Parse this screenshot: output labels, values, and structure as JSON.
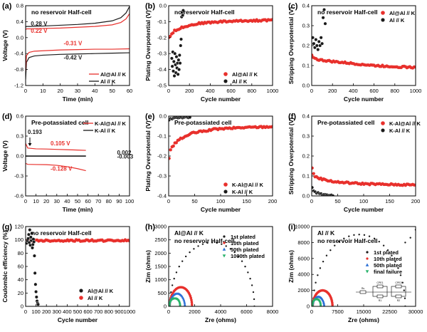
{
  "figure": {
    "panels": [
      "(a)",
      "(b)",
      "(c)",
      "(d)",
      "(e)",
      "(f)",
      "(g)",
      "(h)",
      "(i)"
    ]
  },
  "colors": {
    "red": "#e8302c",
    "black": "#1a1a1a",
    "blue": "#2a6fd6",
    "green": "#29b36b",
    "pink": "#f07a7a",
    "gray": "#b0b0b0"
  },
  "chart_data": [
    {
      "panel": "(a)",
      "type": "line",
      "title": "no reservoir Half-cell",
      "xlabel": "Time (min)",
      "ylabel": "Voltage (V)",
      "xlim": [
        0,
        60
      ],
      "ylim": [
        -1.2,
        0.8
      ],
      "xticks": [
        "0",
        "10",
        "20",
        "30",
        "40",
        "50",
        "60"
      ],
      "yticks": [
        "-1.2",
        "-0.8",
        "-0.4",
        "0.0",
        "0.4",
        "0.8"
      ],
      "annotations": [
        {
          "text": "0.28 V",
          "color": "black",
          "at": [
            3,
            0.3
          ]
        },
        {
          "text": "0.22 V",
          "color": "red",
          "at": [
            3,
            0.12
          ]
        },
        {
          "text": "-0.31 V",
          "color": "red",
          "at": [
            22,
            -0.19
          ]
        },
        {
          "text": "-0.42 V",
          "color": "black",
          "at": [
            22,
            -0.55
          ]
        }
      ],
      "legend": [
        "Al@Al // K",
        "Al // K"
      ],
      "series": [
        {
          "name": "Al // K (plating)",
          "color": "black",
          "x": [
            0,
            0.5,
            2,
            5,
            10,
            20,
            30,
            40,
            50,
            60
          ],
          "y": [
            -1.05,
            -0.62,
            -0.5,
            -0.46,
            -0.44,
            -0.42,
            -0.41,
            -0.4,
            -0.39,
            -0.38
          ]
        },
        {
          "name": "Al@Al // K (plating)",
          "color": "red",
          "x": [
            0,
            0.5,
            2,
            5,
            10,
            20,
            30,
            40,
            50,
            60
          ],
          "y": [
            -0.85,
            -0.45,
            -0.37,
            -0.34,
            -0.33,
            -0.31,
            -0.3,
            -0.29,
            -0.29,
            -0.28
          ]
        },
        {
          "name": "Al // K (stripping)",
          "color": "black",
          "x": [
            0,
            0.5,
            3,
            10,
            20,
            30,
            40,
            50,
            55,
            58,
            60
          ],
          "y": [
            0.26,
            0.28,
            0.28,
            0.29,
            0.31,
            0.33,
            0.36,
            0.42,
            0.5,
            0.62,
            0.78
          ]
        },
        {
          "name": "Al@Al // K (stripping)",
          "color": "red",
          "x": [
            0,
            0.5,
            3,
            10,
            20,
            30,
            40,
            50,
            55,
            58,
            60
          ],
          "y": [
            0.2,
            0.22,
            0.22,
            0.23,
            0.24,
            0.26,
            0.28,
            0.32,
            0.38,
            0.47,
            0.6
          ]
        }
      ]
    },
    {
      "panel": "(b)",
      "type": "scatter",
      "title": "no reservoir Half-cell",
      "xlabel": "Cycle number",
      "ylabel": "Plating Overpotential (V)",
      "xlim": [
        0,
        1000
      ],
      "ylim": [
        -0.5,
        0.0
      ],
      "xticks": [
        "0",
        "200",
        "400",
        "600",
        "800",
        "1000"
      ],
      "yticks": [
        "-0.5",
        "-0.4",
        "-0.3",
        "-0.2",
        "-0.1",
        "0.0"
      ],
      "legend": [
        "Al@Al // K",
        "Al // K"
      ],
      "series": [
        {
          "name": "Al@Al // K",
          "color": "red",
          "trend": {
            "x": [
              1,
              50,
              150,
              300,
              500,
              700,
              1000
            ],
            "y": [
              -0.2,
              -0.16,
              -0.13,
              -0.11,
              -0.1,
              -0.095,
              -0.09
            ]
          }
        },
        {
          "name": "Al // K",
          "color": "black",
          "x": [
            30,
            35,
            40,
            45,
            50,
            55,
            60,
            65,
            70,
            75,
            80,
            85,
            90,
            95,
            100,
            105,
            110,
            115,
            120,
            125,
            130,
            135,
            140
          ],
          "y": [
            -0.33,
            -0.38,
            -0.29,
            -0.41,
            -0.35,
            -0.44,
            -0.3,
            -0.37,
            -0.42,
            -0.32,
            -0.39,
            -0.36,
            -0.43,
            -0.34,
            -0.4,
            -0.31,
            -0.36,
            -0.25,
            -0.21,
            -0.07,
            -0.04,
            -0.06,
            -0.03
          ]
        }
      ]
    },
    {
      "panel": "(c)",
      "type": "scatter",
      "title": "no reservoir Half-cell",
      "xlabel": "Cycle number",
      "ylabel": "Stripping Overpotential (V)",
      "xlim": [
        0,
        1000
      ],
      "ylim": [
        0.0,
        0.4
      ],
      "xticks": [
        "0",
        "200",
        "400",
        "600",
        "800",
        "1000"
      ],
      "yticks": [
        "0.0",
        "0.1",
        "0.2",
        "0.3",
        "0.4"
      ],
      "legend": [
        "Al@Al // K",
        "Al // K"
      ],
      "series": [
        {
          "name": "Al@Al // K",
          "color": "red",
          "trend": {
            "x": [
              1,
              50,
              200,
              400,
              600,
              800,
              1000
            ],
            "y": [
              0.15,
              0.13,
              0.12,
              0.11,
              0.1,
              0.095,
              0.09
            ]
          }
        },
        {
          "name": "Al // K",
          "color": "black",
          "x": [
            10,
            20,
            30,
            40,
            50,
            60,
            70,
            80,
            90,
            100,
            110,
            120,
            130
          ],
          "y": [
            0.24,
            0.21,
            0.19,
            0.23,
            0.2,
            0.18,
            0.22,
            0.2,
            0.24,
            0.21,
            0.34,
            0.38,
            0.31
          ]
        }
      ]
    },
    {
      "panel": "(d)",
      "type": "line",
      "title": "Pre-potassiated cell",
      "xlabel": "Time (min)",
      "ylabel": "Voltage (V)",
      "xlim": [
        0,
        100
      ],
      "ylim": [
        -0.6,
        0.6
      ],
      "xticks": [
        "0",
        "10",
        "20",
        "30",
        "40",
        "50",
        "60",
        "70",
        "80",
        "90",
        "100"
      ],
      "yticks": [
        "-0.6",
        "-0.3",
        "0.0",
        "0.3",
        "0.6"
      ],
      "annotations": [
        {
          "text": "0.193",
          "color": "black",
          "at": [
            2,
            0.33
          ]
        },
        {
          "text": "0.105 V",
          "color": "red",
          "at": [
            24,
            0.16
          ]
        },
        {
          "text": "-0.128 V",
          "color": "red",
          "at": [
            24,
            -0.22
          ]
        },
        {
          "text": "0.002",
          "color": "black",
          "at": [
            88,
            0.02
          ]
        },
        {
          "text": "-0.003",
          "color": "black",
          "at": [
            88,
            -0.04
          ]
        }
      ],
      "legend": [
        "K-Al@Al // K",
        "K-Al // K"
      ],
      "series": [
        {
          "name": "K-Al@Al // K (stripping)",
          "color": "red",
          "x": [
            0,
            2,
            10,
            20,
            30,
            40,
            50,
            58
          ],
          "y": [
            0.19,
            0.12,
            0.108,
            0.105,
            0.1,
            0.095,
            0.09,
            0.085
          ]
        },
        {
          "name": "K-Al@Al // K (plating)",
          "color": "red",
          "x": [
            0,
            2,
            10,
            20,
            30,
            40,
            50,
            58
          ],
          "y": [
            -0.11,
            -0.125,
            -0.128,
            -0.13,
            -0.14,
            -0.16,
            -0.19,
            -0.22
          ]
        },
        {
          "name": "K-Al // K (stripping)",
          "color": "black",
          "x": [
            0,
            10,
            20,
            30,
            40,
            50,
            58
          ],
          "y": [
            0.002,
            0.002,
            0.002,
            0.002,
            0.002,
            0.002,
            0.002
          ]
        },
        {
          "name": "K-Al // K (plating)",
          "color": "black",
          "x": [
            0,
            10,
            20,
            30,
            40,
            50,
            58
          ],
          "y": [
            -0.003,
            -0.003,
            -0.003,
            -0.003,
            -0.003,
            -0.003,
            -0.003
          ]
        }
      ]
    },
    {
      "panel": "(e)",
      "type": "scatter",
      "title": "Pre-potassiated cell",
      "xlabel": "Cycle number",
      "ylabel": "Plating Overpotential (V)",
      "xlim": [
        0,
        220
      ],
      "ylim": [
        -0.4,
        0.0
      ],
      "xticks": [
        "0",
        "50",
        "100",
        "150",
        "200"
      ],
      "yticks": [
        "-0.4",
        "-0.3",
        "-0.2",
        "-0.1",
        "0.0"
      ],
      "legend": [
        "K-Al@Al // K",
        "K-Al // K"
      ],
      "series": [
        {
          "name": "K-Al@Al // K",
          "color": "red",
          "trend": {
            "x": [
              1,
              5,
              20,
              50,
              100,
              150,
              220
            ],
            "y": [
              -0.21,
              -0.16,
              -0.12,
              -0.085,
              -0.065,
              -0.058,
              -0.052
            ]
          }
        },
        {
          "name": "K-Al // K",
          "color": "black",
          "trend": {
            "x": [
              1,
              5,
              15,
              30,
              45
            ],
            "y": [
              -0.02,
              -0.012,
              -0.008,
              -0.006,
              -0.005
            ]
          }
        }
      ]
    },
    {
      "panel": "(f)",
      "type": "scatter",
      "title": "Pre-potassiated cell",
      "xlabel": "Cycle number",
      "ylabel": "Stripping Overpotential (V)",
      "xlim": [
        0,
        220
      ],
      "ylim": [
        0.0,
        0.4
      ],
      "xticks": [
        "0",
        "50",
        "100",
        "150",
        "200"
      ],
      "yticks": [
        "0.0",
        "0.1",
        "0.2",
        "0.3",
        "0.4"
      ],
      "legend": [
        "K-Al@Al // K",
        "K-Al // K"
      ],
      "series": [
        {
          "name": "K-Al@Al // K",
          "color": "red",
          "trend": {
            "x": [
              1,
              5,
              20,
              50,
              100,
              150,
              220
            ],
            "y": [
              0.14,
              0.1,
              0.085,
              0.07,
              0.062,
              0.058,
              0.055
            ]
          }
        },
        {
          "name": "K-Al // K",
          "color": "black",
          "trend": {
            "x": [
              1,
              5,
              15,
              30,
              45
            ],
            "y": [
              0.04,
              0.02,
              0.012,
              0.006,
              0.004
            ]
          }
        }
      ]
    },
    {
      "panel": "(g)",
      "type": "scatter",
      "title": "no reservoir Half-cell",
      "xlabel": "Cycle number",
      "ylabel": "Coulombic efficiency (%)",
      "xlim": [
        0,
        1000
      ],
      "ylim": [
        0,
        120
      ],
      "xticks": [
        "0",
        "100",
        "200",
        "300",
        "400",
        "500",
        "600",
        "700",
        "800",
        "900",
        "1000"
      ],
      "yticks": [
        "0",
        "20",
        "40",
        "60",
        "80",
        "100",
        "120"
      ],
      "legend": [
        "Al@Al // K",
        "Al // K"
      ],
      "series": [
        {
          "name": "Al@Al // K",
          "color": "red",
          "trend": {
            "x": [
              1,
              100,
              300,
              500,
              700,
              1000
            ],
            "y": [
              98,
              99,
              99,
              99,
              99,
              99
            ]
          }
        },
        {
          "name": "Al // K",
          "color": "black",
          "x": [
            10,
            20,
            25,
            30,
            35,
            40,
            45,
            50,
            55,
            60,
            65,
            70,
            75,
            80,
            85,
            90,
            95,
            100,
            105,
            110,
            115,
            120
          ],
          "y": [
            95,
            98,
            102,
            108,
            96,
            115,
            92,
            104,
            99,
            110,
            88,
            93,
            101,
            97,
            76,
            50,
            33,
            22,
            14,
            8,
            5,
            3
          ]
        }
      ]
    },
    {
      "panel": "(h)",
      "type": "scatter",
      "title": "Al@Al // K",
      "subtitle": "no reservoir Half-cell",
      "xlabel": "Zre (ohms)",
      "ylabel": "Zim (ohms)",
      "xlim": [
        0,
        8000
      ],
      "ylim": [
        0,
        3000
      ],
      "xticks": [
        "0",
        "2000",
        "4000",
        "6000",
        "8000"
      ],
      "yticks": [
        "0",
        "500",
        "1000",
        "1500",
        "2000",
        "2500",
        "3000"
      ],
      "legend": [
        "1st plated",
        "10th plated",
        "50th plated",
        "1000th plated"
      ],
      "series": [
        {
          "name": "1st plated",
          "color": "black",
          "arc": {
            "x0": 100,
            "x1": 6600,
            "peak": 2400
          }
        },
        {
          "name": "10th plated",
          "color": "red",
          "arc": {
            "x0": 80,
            "x1": 1800,
            "peak": 720
          }
        },
        {
          "name": "50th plated",
          "color": "blue",
          "arc": {
            "x0": 70,
            "x1": 1250,
            "peak": 480
          }
        },
        {
          "name": "1000th plated",
          "color": "green",
          "arc": {
            "x0": 60,
            "x1": 880,
            "peak": 300
          }
        }
      ]
    },
    {
      "panel": "(i)",
      "type": "scatter",
      "title": "Al // K",
      "subtitle": "no reservoir Half-cell",
      "xlabel": "Zre (ohms)",
      "ylabel": "Zim (ohms)",
      "xlim": [
        0,
        30000
      ],
      "ylim": [
        0,
        10000
      ],
      "xticks": [
        "0",
        "7500",
        "15000",
        "22500",
        "30000"
      ],
      "yticks": [
        "0",
        "2000",
        "4000",
        "6000",
        "8000",
        "10000"
      ],
      "legend": [
        "1st plated",
        "10th plated",
        "50th plated",
        "final failure"
      ],
      "circuit_labels": [
        "Rs",
        "CPE1",
        "R1",
        "CPE2",
        "R2"
      ],
      "series": [
        {
          "name": "1st plated",
          "color": "black",
          "arc": {
            "x0": 400,
            "x1": 27000,
            "peak": 9000
          },
          "tail": {
            "x": [
              27000,
              28500,
              30000
            ],
            "y": [
              8000,
              8600,
              9600
            ]
          }
        },
        {
          "name": "10th plated",
          "color": "red",
          "arc": {
            "x0": 300,
            "x1": 6000,
            "peak": 2000
          }
        },
        {
          "name": "50th plated",
          "color": "blue",
          "arc": {
            "x0": 250,
            "x1": 3600,
            "peak": 1200
          }
        },
        {
          "name": "final failure",
          "color": "green",
          "arc": {
            "x0": 200,
            "x1": 2600,
            "peak": 900
          }
        }
      ]
    }
  ]
}
